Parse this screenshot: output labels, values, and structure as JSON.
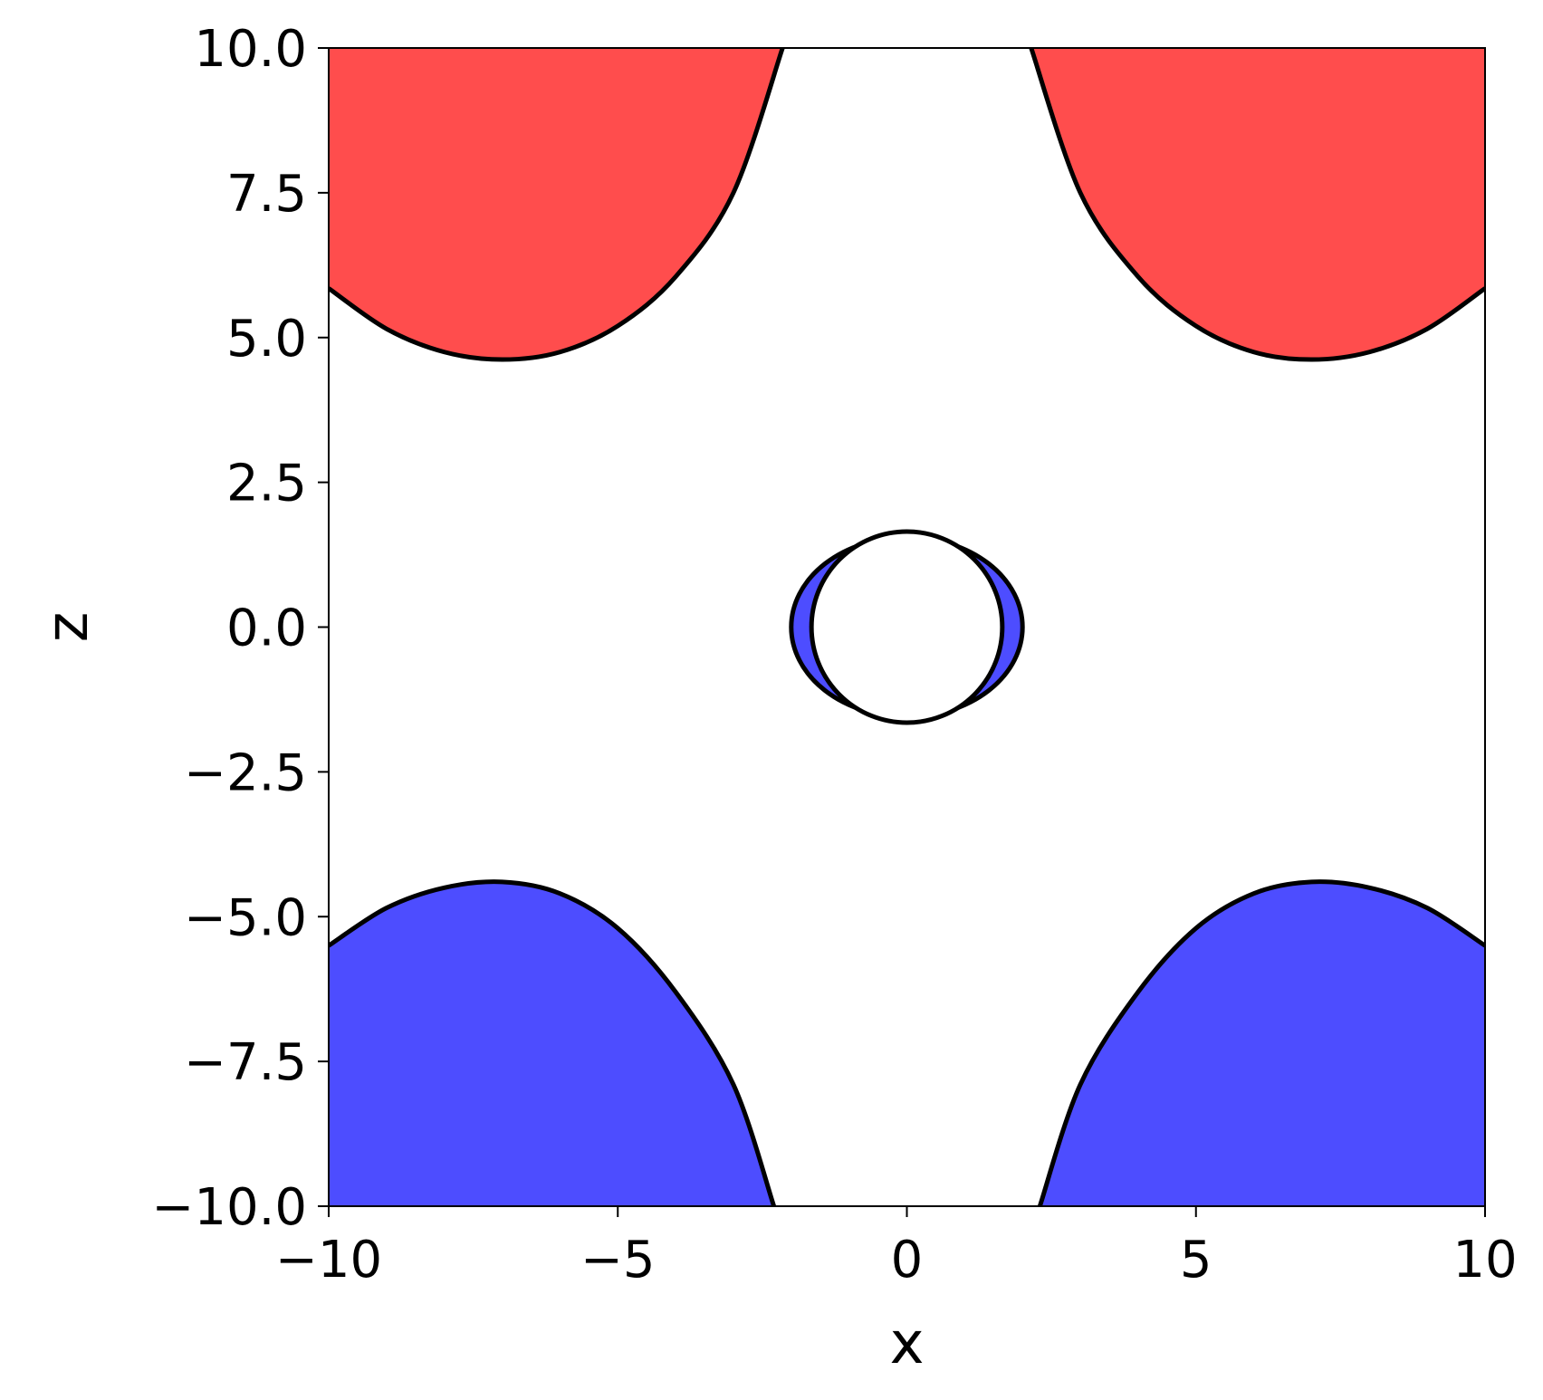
{
  "chart_data": {
    "type": "area",
    "xlabel": "x",
    "ylabel": "z",
    "xlim": [
      -10,
      10
    ],
    "ylim": [
      -10,
      10
    ],
    "xticks": [
      -10,
      -5,
      0,
      5,
      10
    ],
    "xtick_labels": [
      "−10",
      "−5",
      "0",
      "5",
      "10"
    ],
    "yticks": [
      -10,
      -7.5,
      -5,
      -2.5,
      0,
      2.5,
      5,
      7.5,
      10
    ],
    "ytick_labels": [
      "−10.0",
      "−7.5",
      "−5.0",
      "−2.5",
      "0.0",
      "2.5",
      "5.0",
      "7.5",
      "10.0"
    ],
    "grid": false,
    "colors": {
      "positive": "#ff4d4d",
      "negative": "#4d4dff",
      "outline": "#000000"
    },
    "regions": [
      {
        "color": "positive",
        "boundary": [
          [
            -10,
            5.85
          ],
          [
            -9,
            5.15
          ],
          [
            -8,
            4.75
          ],
          [
            -7,
            4.62
          ],
          [
            -6,
            4.75
          ],
          [
            -5,
            5.2
          ],
          [
            -4,
            6.05
          ],
          [
            -3,
            7.5
          ],
          [
            -2.15,
            10
          ]
        ]
      },
      {
        "color": "positive",
        "boundary": [
          [
            2.15,
            10
          ],
          [
            3,
            7.5
          ],
          [
            4,
            6.05
          ],
          [
            5,
            5.2
          ],
          [
            6,
            4.75
          ],
          [
            7,
            4.62
          ],
          [
            8,
            4.75
          ],
          [
            9,
            5.15
          ],
          [
            10,
            5.85
          ]
        ]
      },
      {
        "color": "negative",
        "boundary": [
          [
            -10,
            -5.5
          ],
          [
            -9,
            -4.85
          ],
          [
            -8,
            -4.5
          ],
          [
            -7,
            -4.4
          ],
          [
            -6,
            -4.6
          ],
          [
            -5,
            -5.2
          ],
          [
            -4,
            -6.3
          ],
          [
            -3,
            -7.9
          ],
          [
            -2.3,
            -10
          ]
        ]
      },
      {
        "color": "negative",
        "boundary": [
          [
            2.3,
            -10
          ],
          [
            3,
            -7.9
          ],
          [
            4,
            -6.3
          ],
          [
            5,
            -5.2
          ],
          [
            6,
            -4.6
          ],
          [
            7,
            -4.4
          ],
          [
            8,
            -4.5
          ],
          [
            9,
            -4.85
          ],
          [
            10,
            -5.5
          ]
        ]
      }
    ],
    "center_lobe": {
      "cx": 0,
      "cz": 0,
      "rx": 2.0,
      "rz": 1.55,
      "color": "negative"
    },
    "center_hole": {
      "cx": 0,
      "cz": 0,
      "rx": 1.65,
      "rz": 1.65
    }
  }
}
